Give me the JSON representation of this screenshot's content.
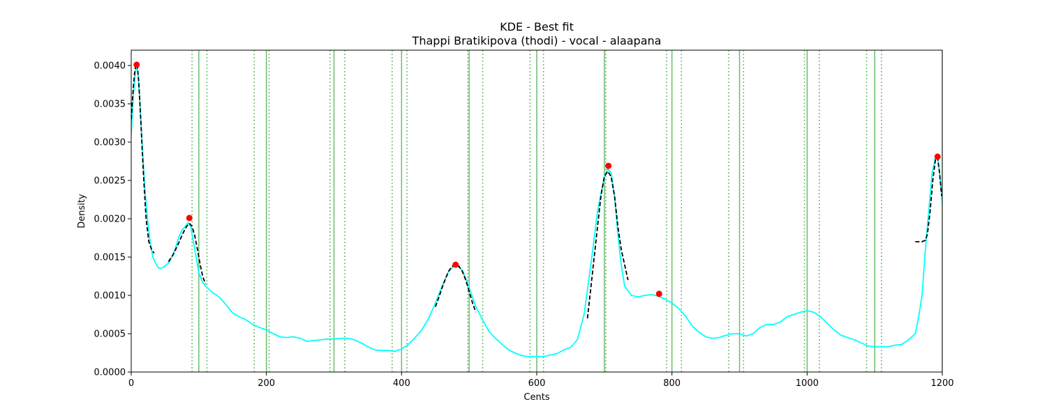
{
  "chart_data": {
    "type": "line",
    "title": "KDE - Best fit",
    "subtitle": "Thappi Bratikipova (thodi) - vocal - alaapana",
    "xlabel": "Cents",
    "ylabel": "Density",
    "xlim": [
      0,
      1200
    ],
    "ylim": [
      0,
      0.0042
    ],
    "xticks": [
      0,
      200,
      400,
      600,
      800,
      1000,
      1200
    ],
    "xtick_labels": [
      "0",
      "200",
      "400",
      "600",
      "800",
      "1000",
      "1200"
    ],
    "yticks": [
      0,
      0.0005,
      0.001,
      0.0015,
      0.002,
      0.0025,
      0.003,
      0.0035,
      0.004
    ],
    "ytick_labels": [
      "0.0000",
      "0.0005",
      "0.0010",
      "0.0015",
      "0.0020",
      "0.0025",
      "0.0030",
      "0.0035",
      "0.0040"
    ],
    "grid": false,
    "colors": {
      "kde": "#00ffff",
      "fit": "#000000",
      "peak": "#ff0000",
      "reference": "#2ca02c"
    },
    "reference_lines_solid": [
      100,
      200,
      300,
      400,
      500,
      600,
      700,
      800,
      900,
      1000,
      1100,
      1200
    ],
    "reference_lines_dotted": [
      90,
      112,
      182,
      204,
      294,
      316,
      386,
      408,
      498,
      520,
      590,
      610,
      702,
      792,
      814,
      884,
      906,
      996,
      1018,
      1088,
      1110
    ],
    "kde": {
      "x": [
        0,
        3,
        6,
        8,
        10,
        13,
        16,
        20,
        24,
        28,
        32,
        36,
        40,
        44,
        48,
        52,
        56,
        60,
        65,
        70,
        75,
        80,
        84,
        88,
        92,
        96,
        100,
        105,
        110,
        115,
        120,
        130,
        140,
        150,
        160,
        170,
        180,
        190,
        200,
        210,
        220,
        230,
        240,
        250,
        260,
        270,
        280,
        290,
        300,
        310,
        320,
        330,
        340,
        350,
        360,
        370,
        380,
        390,
        400,
        410,
        420,
        430,
        440,
        450,
        460,
        470,
        480,
        490,
        500,
        510,
        520,
        530,
        540,
        550,
        560,
        570,
        580,
        590,
        600,
        610,
        620,
        630,
        640,
        650,
        660,
        670,
        680,
        690,
        700,
        705,
        710,
        715,
        720,
        725,
        730,
        740,
        750,
        760,
        770,
        780,
        790,
        800,
        810,
        820,
        830,
        840,
        850,
        860,
        870,
        880,
        890,
        900,
        910,
        920,
        930,
        940,
        950,
        960,
        970,
        980,
        990,
        1000,
        1010,
        1020,
        1030,
        1040,
        1050,
        1060,
        1070,
        1080,
        1090,
        1100,
        1110,
        1120,
        1130,
        1140,
        1150,
        1160,
        1165,
        1170,
        1175,
        1180,
        1185,
        1190,
        1193,
        1196,
        1198,
        1200
      ],
      "y": [
        0.0031,
        0.0036,
        0.0039,
        0.004,
        0.0039,
        0.0035,
        0.003,
        0.0024,
        0.002,
        0.0017,
        0.0015,
        0.00142,
        0.00136,
        0.00135,
        0.00137,
        0.0014,
        0.00143,
        0.0015,
        0.0016,
        0.00175,
        0.00185,
        0.0019,
        0.00195,
        0.0019,
        0.0017,
        0.0015,
        0.0013,
        0.00118,
        0.00112,
        0.00108,
        0.00104,
        0.00098,
        0.00088,
        0.00077,
        0.00072,
        0.00068,
        0.00062,
        0.00058,
        0.00055,
        0.0005,
        0.00046,
        0.00045,
        0.00046,
        0.00044,
        0.0004,
        0.00041,
        0.00042,
        0.00043,
        0.00043,
        0.00044,
        0.00044,
        0.00042,
        0.00038,
        0.00033,
        0.00029,
        0.00028,
        0.00028,
        0.00027,
        0.0003,
        0.00036,
        0.00045,
        0.00055,
        0.0007,
        0.0009,
        0.00112,
        0.00132,
        0.0014,
        0.00133,
        0.0011,
        0.00085,
        0.00068,
        0.00052,
        0.00043,
        0.00035,
        0.00028,
        0.00024,
        0.00021,
        0.0002,
        0.0002,
        0.0002,
        0.00022,
        0.00024,
        0.00029,
        0.00032,
        0.00042,
        0.00075,
        0.0014,
        0.0021,
        0.00255,
        0.00265,
        0.0026,
        0.0023,
        0.0018,
        0.0014,
        0.00112,
        0.001,
        0.00098,
        0.001,
        0.00101,
        0.00099,
        0.00095,
        0.0009,
        0.00083,
        0.00073,
        0.0006,
        0.00052,
        0.00046,
        0.00044,
        0.00045,
        0.00048,
        0.0005,
        0.0005,
        0.00047,
        0.0005,
        0.00058,
        0.00062,
        0.00062,
        0.00065,
        0.00072,
        0.00075,
        0.00078,
        0.0008,
        0.00078,
        0.00072,
        0.00063,
        0.00055,
        0.00048,
        0.00045,
        0.00042,
        0.00038,
        0.00034,
        0.00033,
        0.00033,
        0.00033,
        0.00035,
        0.00036,
        0.00042,
        0.0005,
        0.00072,
        0.001,
        0.0016,
        0.0021,
        0.0026,
        0.0028,
        0.0028,
        0.0026,
        0.0024,
        0.0022
      ]
    },
    "fits": [
      {
        "x": [
          0,
          3,
          5,
          7,
          9,
          11,
          14,
          18,
          22,
          26,
          30,
          34
        ],
        "y": [
          0.0033,
          0.0037,
          0.0039,
          0.00402,
          0.004,
          0.0038,
          0.0033,
          0.0026,
          0.002,
          0.0017,
          0.0016,
          0.00155
        ]
      },
      {
        "x": [
          55,
          62,
          70,
          77,
          82,
          86,
          90,
          94,
          98,
          102,
          106,
          110
        ],
        "y": [
          0.00144,
          0.00153,
          0.00168,
          0.00182,
          0.0019,
          0.00194,
          0.0019,
          0.00178,
          0.0016,
          0.0014,
          0.00124,
          0.00115
        ]
      },
      {
        "x": [
          450,
          455,
          460,
          465,
          470,
          475,
          480,
          485,
          490,
          495,
          500,
          505,
          510
        ],
        "y": [
          0.00085,
          0.00097,
          0.0011,
          0.00122,
          0.00132,
          0.00138,
          0.0014,
          0.00138,
          0.00131,
          0.0012,
          0.00105,
          0.0009,
          0.00078
        ]
      },
      {
        "x": [
          675,
          680,
          685,
          690,
          695,
          700,
          705,
          710,
          715,
          720,
          725,
          730,
          735
        ],
        "y": [
          0.0007,
          0.0011,
          0.0015,
          0.0019,
          0.0023,
          0.00255,
          0.00262,
          0.00255,
          0.0023,
          0.0019,
          0.0016,
          0.0014,
          0.0012
        ]
      },
      {
        "x": [
          1160,
          1170,
          1175,
          1178,
          1182,
          1186,
          1190,
          1193,
          1196,
          1199
        ],
        "y": [
          0.0017,
          0.0017,
          0.00172,
          0.0018,
          0.0021,
          0.0025,
          0.00278,
          0.0028,
          0.0026,
          0.0023
        ]
      }
    ],
    "peaks": {
      "x": [
        8,
        86,
        480,
        706,
        781,
        1193
      ],
      "y": [
        0.00401,
        0.00201,
        0.0014,
        0.00269,
        0.00102,
        0.00281
      ]
    }
  }
}
